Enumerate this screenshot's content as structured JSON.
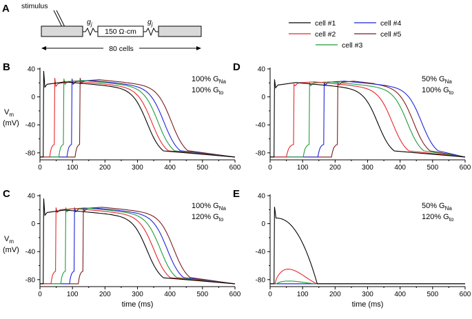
{
  "panel_a": {
    "letter": "A",
    "stimulus_label": "stimulus",
    "gj_label_1": "g",
    "gj_sub_1": "j",
    "gj_label_2": "g",
    "gj_sub_2": "j",
    "resistance_label": "150 Ω·cm",
    "length_label": "80 cells"
  },
  "legend": {
    "items": [
      {
        "label": "cell #1",
        "color": "#000000"
      },
      {
        "label": "cell #2",
        "color": "#e8262a"
      },
      {
        "label": "cell #3",
        "color": "#1e9b3a"
      },
      {
        "label": "cell #4",
        "color": "#1c22d8"
      },
      {
        "label": "cell #5",
        "color": "#7a1a1a"
      }
    ]
  },
  "chart_data": [
    {
      "type": "line",
      "panel": "B",
      "gna_value": "100%",
      "gna_label": "G",
      "gna_sub": "Na",
      "gto_value": "100%",
      "gto_label": "G",
      "gto_sub": "to",
      "ylabel": "V",
      "ylabel_sub": "m",
      "ylabel_unit": "(mV)",
      "xlabel": "",
      "xlim": [
        0,
        600
      ],
      "ylim": [
        -90,
        40
      ],
      "xticks": [
        "0",
        "100",
        "200",
        "300",
        "400",
        "500",
        "600"
      ],
      "yticks": [
        "40",
        "0",
        "-40",
        "-80"
      ],
      "series": [
        {
          "name": "cell #1",
          "onset": 10,
          "peak": 37,
          "plateau": 20,
          "apd": 335,
          "rest": -86,
          "prerise": 0
        },
        {
          "name": "cell #2",
          "onset": 44,
          "peak": 27,
          "plateau": 21,
          "apd": 316,
          "rest": -86,
          "prerise": 14
        },
        {
          "name": "cell #3",
          "onset": 72,
          "peak": 26,
          "plateau": 22,
          "apd": 307,
          "rest": -86,
          "prerise": 14
        },
        {
          "name": "cell #4",
          "onset": 97,
          "peak": 26,
          "plateau": 22,
          "apd": 300,
          "rest": -86,
          "prerise": 14
        },
        {
          "name": "cell #5",
          "onset": 122,
          "peak": 27,
          "plateau": 23,
          "apd": 298,
          "rest": -86,
          "prerise": 14
        }
      ]
    },
    {
      "type": "line",
      "panel": "D",
      "gna_value": "50%",
      "gna_label": "G",
      "gna_sub": "Na",
      "gto_value": "100%",
      "gto_label": "G",
      "gto_sub": "to",
      "ylabel": "",
      "ylabel_sub": "",
      "ylabel_unit": "",
      "xlabel": "",
      "xlim": [
        0,
        600
      ],
      "ylim": [
        -90,
        40
      ],
      "xticks": [
        "0",
        "100",
        "200",
        "300",
        "400",
        "500",
        "600"
      ],
      "yticks": [
        "40",
        "0",
        "-40",
        "-80"
      ],
      "series": [
        {
          "name": "cell #1",
          "onset": 12,
          "peak": 25,
          "plateau": 19,
          "apd": 335,
          "rest": -86,
          "prerise": 0
        },
        {
          "name": "cell #2",
          "onset": 72,
          "peak": 18,
          "plateau": 20,
          "apd": 320,
          "rest": -86,
          "prerise": 22
        },
        {
          "name": "cell #3",
          "onset": 120,
          "peak": 20,
          "plateau": 20,
          "apd": 318,
          "rest": -86,
          "prerise": 18
        },
        {
          "name": "cell #4",
          "onset": 165,
          "peak": 20,
          "plateau": 21,
          "apd": 317,
          "rest": -86,
          "prerise": 18
        },
        {
          "name": "cell #5",
          "onset": 207,
          "peak": 20,
          "plateau": 21,
          "apd": 250,
          "rest": -86,
          "prerise": 18
        }
      ]
    },
    {
      "type": "line",
      "panel": "C",
      "gna_value": "100%",
      "gna_label": "G",
      "gna_sub": "Na",
      "gto_value": "120%",
      "gto_label": "G",
      "gto_sub": "to",
      "ylabel": "V",
      "ylabel_sub": "m",
      "ylabel_unit": "(mV)",
      "xlabel": "time (ms)",
      "xlim": [
        0,
        600
      ],
      "ylim": [
        -90,
        40
      ],
      "xticks": [
        "0",
        "100",
        "200",
        "300",
        "400",
        "500",
        "600"
      ],
      "yticks": [
        "40",
        "0",
        "-40",
        "-80"
      ],
      "series": [
        {
          "name": "cell #1",
          "onset": 10,
          "peak": 36,
          "plateau": 18,
          "apd": 335,
          "rest": -86,
          "prerise": 0
        },
        {
          "name": "cell #2",
          "onset": 48,
          "peak": 23,
          "plateau": 20,
          "apd": 318,
          "rest": -86,
          "prerise": 14
        },
        {
          "name": "cell #3",
          "onset": 78,
          "peak": 23,
          "plateau": 21,
          "apd": 308,
          "rest": -86,
          "prerise": 14
        },
        {
          "name": "cell #4",
          "onset": 105,
          "peak": 23,
          "plateau": 21,
          "apd": 302,
          "rest": -86,
          "prerise": 14
        },
        {
          "name": "cell #5",
          "onset": 132,
          "peak": 23,
          "plateau": 22,
          "apd": 295,
          "rest": -86,
          "prerise": 14
        }
      ]
    },
    {
      "type": "line",
      "panel": "E",
      "gna_value": "50%",
      "gna_label": "G",
      "gna_sub": "Na",
      "gto_value": "120%",
      "gto_label": "G",
      "gto_sub": "to",
      "ylabel": "",
      "ylabel_sub": "",
      "ylabel_unit": "",
      "xlabel": "time (ms)",
      "xlim": [
        0,
        600
      ],
      "ylim": [
        -90,
        40
      ],
      "xticks": [
        "0",
        "100",
        "200",
        "300",
        "400",
        "500",
        "600"
      ],
      "yticks": [
        "40",
        "0",
        "-40",
        "-80"
      ],
      "series": [
        {
          "name": "cell #1",
          "kind": "fail",
          "onset": 12,
          "peak": 24,
          "plateau": 6,
          "end": 145,
          "rest": -86
        },
        {
          "name": "cell #2",
          "kind": "bump",
          "onset": 15,
          "peak": -65,
          "end": 145,
          "rest": -86
        },
        {
          "name": "cell #3",
          "kind": "bump",
          "onset": 20,
          "peak": -82,
          "end": 140,
          "rest": -86
        },
        {
          "name": "cell #4",
          "kind": "flat",
          "rest": -86
        },
        {
          "name": "cell #5",
          "kind": "flat",
          "rest": -86
        }
      ]
    }
  ]
}
